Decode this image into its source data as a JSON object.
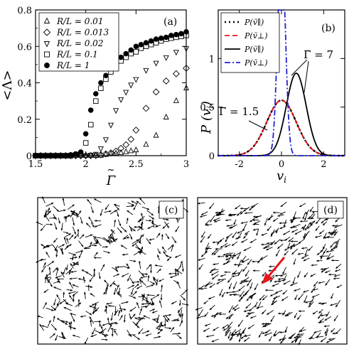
{
  "chart_data": [
    {
      "panel": "(a)",
      "type": "scatter",
      "xlabel": "Γ̃",
      "ylabel": "<Λ>",
      "xlim": [
        1.5,
        3.0
      ],
      "ylim": [
        0,
        0.8
      ],
      "xticks": [
        "1.5",
        "2",
        "2.5",
        "3"
      ],
      "yticks": [
        "0",
        "0.2",
        "0.4",
        "0.6",
        "0.8"
      ],
      "legend": "top-left",
      "series": [
        {
          "name": "R/L = 0.01",
          "marker": "triangle-up",
          "x": [
            1.5,
            1.55,
            1.6,
            1.65,
            1.7,
            1.75,
            1.8,
            1.85,
            1.9,
            1.95,
            2.0,
            2.05,
            2.1,
            2.15,
            2.2,
            2.25,
            2.3,
            2.35,
            2.4,
            2.45,
            2.5,
            2.6,
            2.7,
            2.8,
            2.9,
            3.0
          ],
          "y": [
            0,
            0,
            0,
            0,
            0,
            0,
            0,
            0,
            0,
            0,
            0,
            0,
            0,
            0,
            0.005,
            0.01,
            0.012,
            0.015,
            0.02,
            0.025,
            0.03,
            0.06,
            0.11,
            0.21,
            0.3,
            0.37
          ]
        },
        {
          "name": "R/L = 0.013",
          "marker": "diamond",
          "x": [
            1.5,
            1.55,
            1.6,
            1.65,
            1.7,
            1.75,
            1.8,
            1.85,
            1.9,
            1.95,
            2.0,
            2.05,
            2.1,
            2.15,
            2.2,
            2.25,
            2.3,
            2.35,
            2.4,
            2.45,
            2.5,
            2.6,
            2.7,
            2.8,
            2.9,
            3.0
          ],
          "y": [
            0,
            0,
            0,
            0,
            0,
            0,
            0,
            0,
            0,
            0,
            0,
            0,
            0,
            0.005,
            0.01,
            0.015,
            0.025,
            0.04,
            0.06,
            0.09,
            0.14,
            0.26,
            0.35,
            0.41,
            0.45,
            0.48
          ]
        },
        {
          "name": "R/L = 0.02",
          "marker": "triangle-down",
          "x": [
            1.5,
            1.55,
            1.6,
            1.65,
            1.7,
            1.75,
            1.8,
            1.85,
            1.9,
            1.95,
            2.0,
            2.05,
            2.1,
            2.15,
            2.2,
            2.25,
            2.3,
            2.35,
            2.4,
            2.45,
            2.5,
            2.6,
            2.7,
            2.8,
            2.9,
            3.0
          ],
          "y": [
            0,
            0,
            0,
            0,
            0,
            0,
            0,
            0,
            0,
            0,
            0,
            0.005,
            0.01,
            0.04,
            0.09,
            0.17,
            0.25,
            0.31,
            0.35,
            0.39,
            0.42,
            0.47,
            0.51,
            0.54,
            0.57,
            0.59
          ]
        },
        {
          "name": "R/L = 0.1",
          "marker": "square",
          "x": [
            1.5,
            1.55,
            1.6,
            1.65,
            1.7,
            1.75,
            1.8,
            1.85,
            1.9,
            1.95,
            2.0,
            2.05,
            2.1,
            2.15,
            2.2,
            2.25,
            2.3,
            2.35,
            2.4,
            2.45,
            2.5,
            2.55,
            2.6,
            2.65,
            2.7,
            2.75,
            2.8,
            2.85,
            2.9,
            2.95,
            3.0
          ],
          "y": [
            0,
            0,
            0,
            0,
            0,
            0,
            0,
            0,
            0.005,
            0.01,
            0.07,
            0.17,
            0.3,
            0.37,
            0.42,
            0.46,
            0.49,
            0.52,
            0.54,
            0.56,
            0.57,
            0.59,
            0.6,
            0.61,
            0.62,
            0.63,
            0.64,
            0.645,
            0.65,
            0.655,
            0.66
          ]
        },
        {
          "name": "R/L = 1",
          "marker": "circle",
          "x": [
            1.5,
            1.55,
            1.6,
            1.65,
            1.7,
            1.75,
            1.8,
            1.85,
            1.9,
            1.95,
            2.0,
            2.05,
            2.1,
            2.15,
            2.2,
            2.25,
            2.3,
            2.35,
            2.4,
            2.45,
            2.5,
            2.55,
            2.6,
            2.65,
            2.7,
            2.75,
            2.8,
            2.85,
            2.9,
            2.95,
            3.0
          ],
          "y": [
            0,
            0,
            0,
            0,
            0,
            0,
            0,
            0.005,
            0.01,
            0.02,
            0.12,
            0.25,
            0.34,
            0.4,
            0.44,
            0.48,
            0.51,
            0.54,
            0.56,
            0.58,
            0.6,
            0.61,
            0.62,
            0.63,
            0.64,
            0.645,
            0.65,
            0.66,
            0.665,
            0.67,
            0.68
          ]
        }
      ]
    },
    {
      "panel": "(b)",
      "type": "line",
      "xlabel": "ṽ_i",
      "ylabel": "P(ṽ_i)",
      "xlim": [
        -3,
        3
      ],
      "ylim": [
        0,
        1.5
      ],
      "xticks": [
        "-2",
        "0",
        "2"
      ],
      "yticks": [
        "0",
        "0.5",
        "1"
      ],
      "legend": "top-left",
      "series": [
        {
          "name": "P(ṽ∥)",
          "style": "dotted",
          "color": "#000000",
          "gamma": "1.5",
          "mean": 0.0,
          "sd": 0.7
        },
        {
          "name": "P(ṽ⊥)",
          "style": "dashed",
          "color": "#e8141b",
          "gamma": "1.5",
          "mean": 0.0,
          "sd": 0.7
        },
        {
          "name": "P(ṽ∥)",
          "style": "solid",
          "color": "#000000",
          "gamma": "7",
          "mean": 0.7,
          "sd": 0.47
        },
        {
          "name": "P(ṽ⊥)",
          "style": "dashdot",
          "color": "#1f1fd6",
          "gamma": "7",
          "mean": 0.0,
          "sd": 0.18
        }
      ],
      "annotations": [
        "Γ̃ = 1.5",
        "Γ̃ = 7"
      ]
    },
    {
      "panel": "(c)",
      "type": "scatter",
      "description_type": "vector field snapshot (disordered)",
      "seed": 17,
      "count": 420,
      "aligned": false
    },
    {
      "panel": "(d)",
      "type": "scatter",
      "description_type": "vector field snapshot (aligned)",
      "seed": 31,
      "count": 420,
      "aligned": true,
      "mean_direction_deg": 215,
      "highlight_color": "#e8141b"
    }
  ],
  "panels": {
    "a": {
      "label": "(a)",
      "legend": [
        "R/L = 0.01",
        "R/L = 0.013",
        "R/L = 0.02",
        "R/L = 0.1",
        "R/L = 1"
      ]
    },
    "b": {
      "label": "(b)",
      "ann1": "Γ̃ = 1.5",
      "ann2": "Γ̃ = 7"
    },
    "c": {
      "label": "(c)"
    },
    "d": {
      "label": "(d)"
    }
  }
}
